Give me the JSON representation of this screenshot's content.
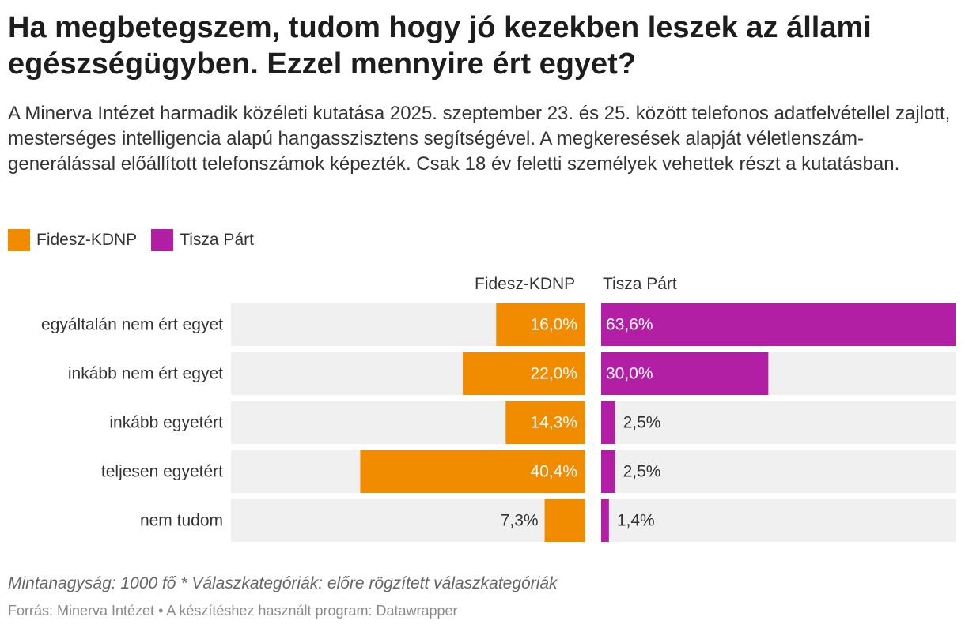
{
  "header": {
    "title": "Ha megbetegszem, tudom hogy jó kezekben leszek az állami egészségügyben. Ezzel mennyire ért egyet?",
    "description": "A Minerva Intézet harmadik közéleti kutatása 2025. szeptember 23. és 25. között telefonos adatfelvétellel zajlott, mesterséges intelligencia alapú hangasszisztens segítségével. A megkeresések alapját véletlenszám-generálással előállított telefonszámok képezték. Csak 18 év feletti személyek vehettek részt a kutatásban."
  },
  "colors": {
    "fidesz": "#f18b00",
    "tisza": "#b21fa5",
    "track": "#f0f0f0"
  },
  "chart_data": {
    "type": "bar",
    "orientation": "horizontal-split",
    "categories": [
      "egyáltalán nem ért egyet",
      "inkább nem ért egyet",
      "inkább egyetért",
      "teljesen egyetért",
      "nem tudom"
    ],
    "series": [
      {
        "name": "Fidesz-KDNP",
        "values": [
          16.0,
          22.0,
          14.3,
          40.4,
          7.3
        ],
        "labels": [
          "16,0%",
          "22,0%",
          "14,3%",
          "40,4%",
          "7,3%"
        ]
      },
      {
        "name": "Tisza Párt",
        "values": [
          63.6,
          30.0,
          2.5,
          2.5,
          1.4
        ],
        "labels": [
          "63,6%",
          "30,0%",
          "2,5%",
          "2,5%",
          "1,4%"
        ]
      }
    ],
    "column_headers": [
      "Fidesz-KDNP",
      "Tisza Párt"
    ],
    "xlim": [
      0,
      63.6
    ]
  },
  "legend": {
    "items": [
      {
        "label": "Fidesz-KDNP"
      },
      {
        "label": "Tisza Párt"
      }
    ]
  },
  "footer": {
    "note": "Mintanagyság: 1000 fő * Válaszkategóriák: előre rögzített válaszkategóriák",
    "source": "Forrás: Minerva Intézet • A készítéshez használt program: Datawrapper"
  }
}
